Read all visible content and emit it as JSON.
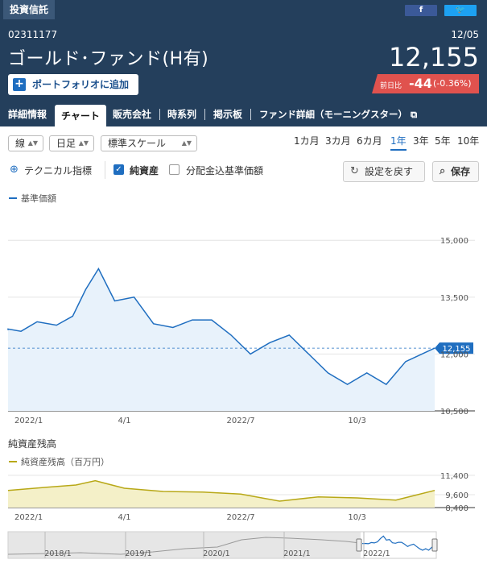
{
  "header": {
    "brand": "投資信託",
    "facebook_icon": "f",
    "twitter_icon": "🐦",
    "code": "02311177",
    "date": "12/05",
    "fund_name": "ゴールド･ファンド(H有)",
    "price": "12,155",
    "add_portfolio_label": "ポートフォリオに追加",
    "change_label": "前日比",
    "change_value": "-44",
    "change_pct": "(-0.36%)"
  },
  "tabs": [
    {
      "label": "詳細情報",
      "active": false
    },
    {
      "label": "チャート",
      "active": true
    },
    {
      "label": "販売会社",
      "active": false
    },
    {
      "label": "時系列",
      "active": false
    },
    {
      "label": "掲示板",
      "active": false
    },
    {
      "label": "ファンド詳細（モーニングスター）",
      "active": false
    }
  ],
  "controls": {
    "chart_type": "線",
    "interval": "日足",
    "scale": "標準スケール",
    "periods": [
      "1カ月",
      "3カ月",
      "6カ月",
      "1年",
      "3年",
      "5年",
      "10年"
    ],
    "active_period": "1年",
    "technical_label": "テクニカル指標",
    "nav_label": "純資産",
    "nav_checked": true,
    "distrib_label": "分配金込基準価額",
    "distrib_checked": false,
    "reset_label": "設定を戻す",
    "save_label": "保存"
  },
  "colors": {
    "header_bg": "#243f5c",
    "line": "#1f6ec0",
    "asset_line": "#b8a817",
    "negative": "#e0524e"
  },
  "chart_data": [
    {
      "type": "line",
      "legend": "基準価額",
      "y_ticks": [
        "15,000",
        "13,500",
        "12,000",
        "10,500"
      ],
      "ylim": [
        10500,
        15600
      ],
      "x_ticks": [
        "2022/1",
        "4/1",
        "2022/7",
        "10/3"
      ],
      "last_label": "12,155",
      "x": [
        "2022/1",
        "2022/1",
        "2022/1",
        "2022/2",
        "2022/2",
        "2022/3",
        "2022/3",
        "2022/3",
        "2022/4",
        "2022/4",
        "2022/5",
        "2022/5",
        "2022/6",
        "2022/6",
        "2022/7",
        "2022/7",
        "2022/8",
        "2022/8",
        "2022/9",
        "2022/9",
        "2022/10",
        "2022/10",
        "2022/11",
        "2022/11",
        "2022/12"
      ],
      "y": [
        12630,
        12660,
        12600,
        12850,
        12760,
        13000,
        13700,
        14250,
        13400,
        13500,
        12800,
        12700,
        12900,
        12900,
        12500,
        12000,
        12300,
        12500,
        12000,
        11500,
        11200,
        11500,
        11200,
        11800,
        12155
      ]
    },
    {
      "type": "area",
      "title": "純資産残高",
      "legend": "純資産残高（百万円）",
      "y_ticks": [
        "11,400",
        "9,600",
        "8,400"
      ],
      "ylim": [
        8400,
        11400
      ],
      "x_ticks": [
        "2022/1",
        "4/1",
        "2022/7",
        "10/3"
      ],
      "x": [
        "2022/1",
        "2022/2",
        "2022/3",
        "2022/3",
        "2022/4",
        "2022/5",
        "2022/6",
        "2022/7",
        "2022/8",
        "2022/9",
        "2022/10",
        "2022/11",
        "2022/12"
      ],
      "y": [
        10000,
        10300,
        10500,
        10900,
        10200,
        9900,
        9850,
        9650,
        9000,
        9400,
        9300,
        9100,
        10000
      ]
    }
  ],
  "navigator": {
    "years": [
      "2018/1",
      "2019/1",
      "2020/1",
      "2021/1",
      "2022/1"
    ]
  }
}
